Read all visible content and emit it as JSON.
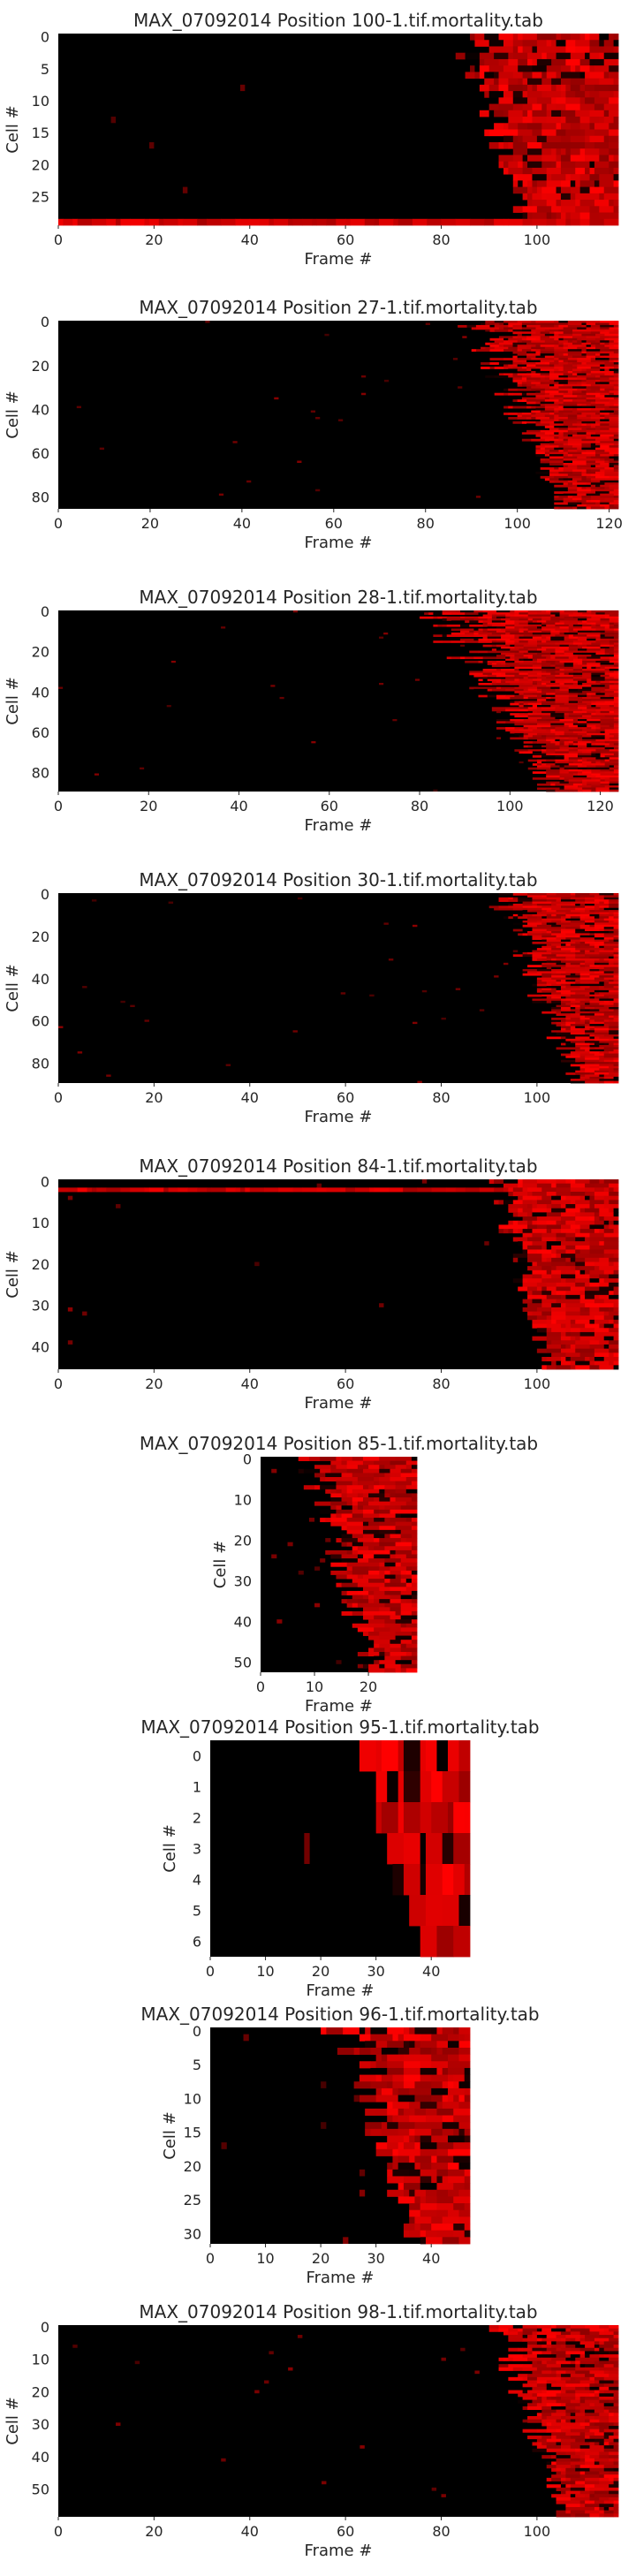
{
  "figure": {
    "background": "#ffffff",
    "text_color": "#262626",
    "colormap": [
      "#000000",
      "#ff0000"
    ]
  },
  "chart_data": [
    {
      "type": "heatmap",
      "title": "MAX_07092014 Position 100-1.tif.mortality.tab",
      "xlabel": "Frame #",
      "ylabel": "Cell #",
      "n_frames": 117,
      "n_cells": 30,
      "xticks": [
        0,
        20,
        40,
        60,
        80,
        100
      ],
      "yticks": [
        0,
        5,
        10,
        15,
        20,
        25
      ],
      "onset_start": 80,
      "onset_end": 105,
      "full_red_rows": [
        29
      ],
      "grid": false
    },
    {
      "type": "heatmap",
      "title": "MAX_07092014 Position 27-1.tif.mortality.tab",
      "xlabel": "Frame #",
      "ylabel": "Cell #",
      "n_frames": 122,
      "n_cells": 86,
      "xticks": [
        0,
        20,
        40,
        60,
        80,
        100,
        120
      ],
      "yticks": [
        0,
        20,
        40,
        60,
        80
      ],
      "onset_start": 86,
      "onset_end": 120,
      "full_red_rows": [],
      "grid": false
    },
    {
      "type": "heatmap",
      "title": "MAX_07092014 Position 28-1.tif.mortality.tab",
      "xlabel": "Frame #",
      "ylabel": "Cell #",
      "n_frames": 124,
      "n_cells": 90,
      "xticks": [
        0,
        20,
        40,
        60,
        80,
        100,
        120
      ],
      "yticks": [
        0,
        20,
        40,
        60,
        80
      ],
      "onset_start": 78,
      "onset_end": 122,
      "full_red_rows": [],
      "grid": false
    },
    {
      "type": "heatmap",
      "title": "MAX_07092014 Position 30-1.tif.mortality.tab",
      "xlabel": "Frame #",
      "ylabel": "Cell #",
      "n_frames": 117,
      "n_cells": 90,
      "xticks": [
        0,
        20,
        40,
        60,
        80,
        100
      ],
      "yticks": [
        0,
        20,
        40,
        60,
        80
      ],
      "onset_start": 88,
      "onset_end": 116,
      "full_red_rows": [],
      "grid": false
    },
    {
      "type": "heatmap",
      "title": "MAX_07092014 Position 84-1.tif.mortality.tab",
      "xlabel": "Frame #",
      "ylabel": "Cell #",
      "n_frames": 117,
      "n_cells": 46,
      "xticks": [
        0,
        20,
        40,
        60,
        80,
        100
      ],
      "yticks": [
        0,
        10,
        20,
        30,
        40
      ],
      "onset_start": 88,
      "onset_end": 108,
      "full_red_rows": [
        2
      ],
      "grid": false
    },
    {
      "type": "heatmap",
      "title": "MAX_07092014 Position 85-1.tif.mortality.tab",
      "xlabel": "Frame #",
      "ylabel": "Cell #",
      "n_frames": 29,
      "n_cells": 53,
      "xticks": [
        0,
        10,
        20
      ],
      "yticks": [
        0,
        10,
        20,
        30,
        40,
        50
      ],
      "onset_start": 5,
      "onset_end": 27,
      "full_red_rows": [],
      "grid": false
    },
    {
      "type": "heatmap",
      "title": "MAX_07092014 Position 95-1.tif.mortality.tab",
      "xlabel": "Frame #",
      "ylabel": "Cell #",
      "n_frames": 47,
      "n_cells": 7,
      "xticks": [
        0,
        10,
        20,
        30,
        40
      ],
      "yticks": [
        0,
        1,
        2,
        3,
        4,
        5,
        6
      ],
      "onset_start": 26,
      "onset_end": 42,
      "full_red_rows": [],
      "grid": false
    },
    {
      "type": "heatmap",
      "title": "MAX_07092014 Position 96-1.tif.mortality.tab",
      "xlabel": "Frame #",
      "ylabel": "Cell #",
      "n_frames": 47,
      "n_cells": 32,
      "xticks": [
        0,
        10,
        20,
        30,
        40
      ],
      "yticks": [
        0,
        5,
        10,
        15,
        20,
        25,
        30
      ],
      "onset_start": 19,
      "onset_end": 44,
      "full_red_rows": [],
      "grid": false
    },
    {
      "type": "heatmap",
      "title": "MAX_07092014 Position 98-1.tif.mortality.tab",
      "xlabel": "Frame #",
      "ylabel": "Cell #",
      "n_frames": 117,
      "n_cells": 59,
      "xticks": [
        0,
        20,
        40,
        60,
        80,
        100
      ],
      "yticks": [
        0,
        10,
        20,
        30,
        40,
        50
      ],
      "onset_start": 88,
      "onset_end": 112,
      "full_red_rows": [],
      "grid": false
    }
  ]
}
